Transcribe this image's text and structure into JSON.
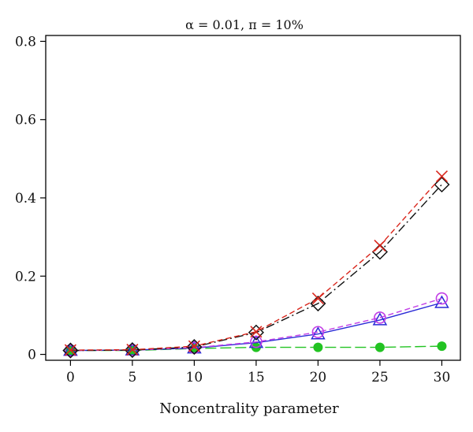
{
  "chart_data": {
    "type": "line",
    "title": "α = 0.01, π = 10%",
    "xlabel": "Noncentrality parameter",
    "ylabel": "",
    "x": [
      0,
      5,
      10,
      15,
      20,
      25,
      30
    ],
    "xlim": [
      -2,
      31.5
    ],
    "ylim": [
      -0.015,
      0.815
    ],
    "xticks": [
      "0",
      "5",
      "10",
      "15",
      "20",
      "25",
      "30"
    ],
    "yticks": [
      "0",
      "0.2",
      "0.4",
      "0.6",
      "0.8"
    ],
    "ytick_values": [
      0,
      0.2,
      0.4,
      0.6,
      0.8
    ],
    "grid": false,
    "legend": "none",
    "series": [
      {
        "marker": "circle-filled",
        "color": "#22c322",
        "dash": "long-dash",
        "values": [
          0.01,
          0.01,
          0.015,
          0.018,
          0.018,
          0.018,
          0.021
        ]
      },
      {
        "marker": "triangle",
        "color": "#2a2ad6",
        "dash": "solid",
        "values": [
          0.01,
          0.011,
          0.016,
          0.03,
          0.052,
          0.088,
          0.132
        ]
      },
      {
        "marker": "circle",
        "color": "#c23ee6",
        "dash": "dashed",
        "values": [
          0.01,
          0.011,
          0.017,
          0.032,
          0.057,
          0.094,
          0.143
        ]
      },
      {
        "marker": "diamond",
        "color": "#111111",
        "dash": "dash-dot",
        "values": [
          0.01,
          0.011,
          0.019,
          0.056,
          0.13,
          0.262,
          0.434
        ]
      },
      {
        "marker": "cross",
        "color": "#d9261c",
        "dash": "dashed",
        "values": [
          0.011,
          0.012,
          0.021,
          0.058,
          0.143,
          0.278,
          0.455
        ]
      }
    ]
  }
}
